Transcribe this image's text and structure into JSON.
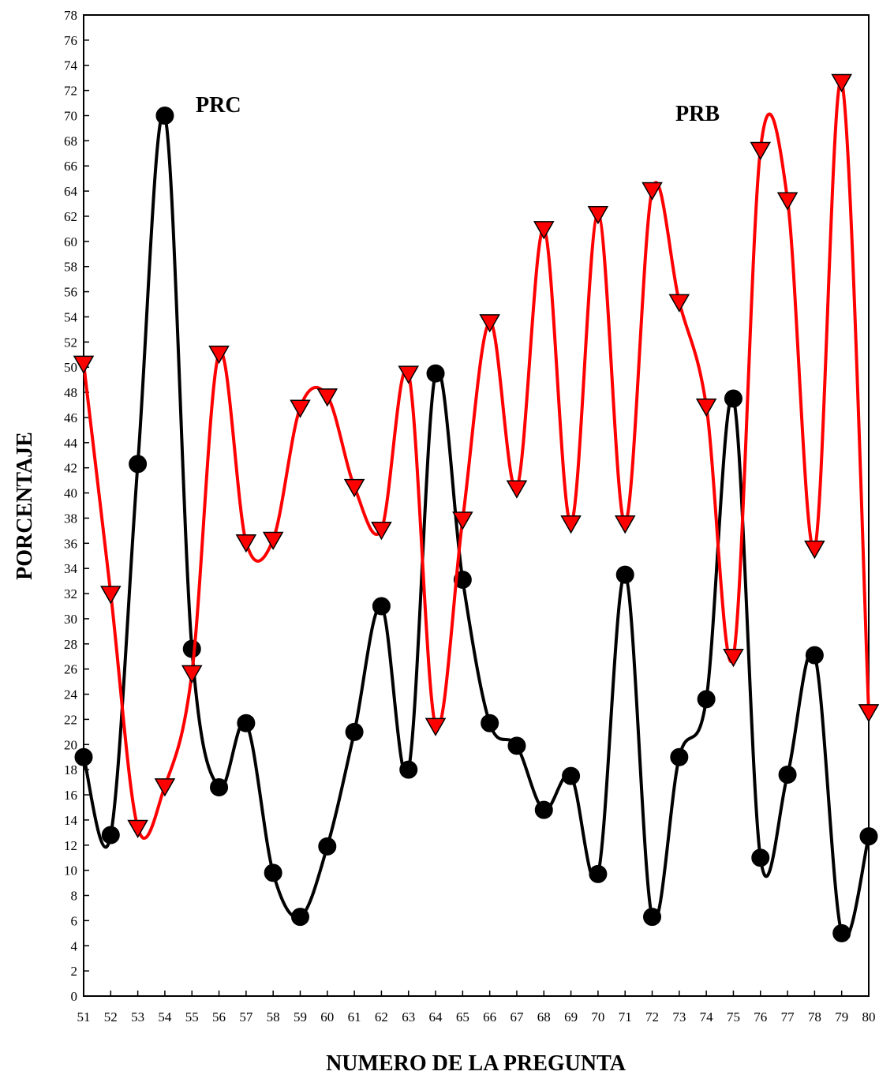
{
  "chart_data": {
    "type": "line",
    "title": "",
    "xlabel": "NUMERO DE LA PREGUNTA",
    "ylabel": "PORCENTAJE",
    "x": [
      51,
      52,
      53,
      54,
      55,
      56,
      57,
      58,
      59,
      60,
      61,
      62,
      63,
      64,
      65,
      66,
      67,
      68,
      69,
      70,
      71,
      72,
      73,
      74,
      75,
      76,
      77,
      78,
      79,
      80
    ],
    "ylim": [
      0,
      78
    ],
    "yticks": [
      0,
      2,
      4,
      6,
      8,
      10,
      12,
      14,
      16,
      18,
      20,
      22,
      24,
      26,
      28,
      30,
      32,
      34,
      36,
      38,
      40,
      42,
      44,
      46,
      48,
      50,
      52,
      54,
      56,
      58,
      60,
      62,
      64,
      66,
      68,
      70,
      72,
      74,
      76,
      78
    ],
    "grid": false,
    "series": [
      {
        "name": "PRC",
        "color": "#000000",
        "marker": "circle",
        "values": [
          19.0,
          12.8,
          42.3,
          70.0,
          27.6,
          16.6,
          21.7,
          9.8,
          6.3,
          11.9,
          21.0,
          31.0,
          18.0,
          49.5,
          33.1,
          21.7,
          19.9,
          14.8,
          17.5,
          9.7,
          33.5,
          6.3,
          19.0,
          23.6,
          47.5,
          11.0,
          17.6,
          27.1,
          5.0,
          12.7
        ]
      },
      {
        "name": "PRB",
        "color": "#ff0000",
        "marker": "triangle-down",
        "values": [
          50.3,
          32.0,
          13.4,
          16.7,
          25.7,
          51.1,
          36.1,
          36.3,
          46.8,
          47.7,
          40.5,
          37.1,
          49.5,
          21.5,
          37.9,
          53.6,
          40.4,
          61.0,
          37.6,
          62.2,
          37.6,
          64.1,
          55.2,
          46.9,
          27.0,
          67.3,
          63.3,
          35.6,
          72.7,
          22.6
        ]
      }
    ]
  }
}
